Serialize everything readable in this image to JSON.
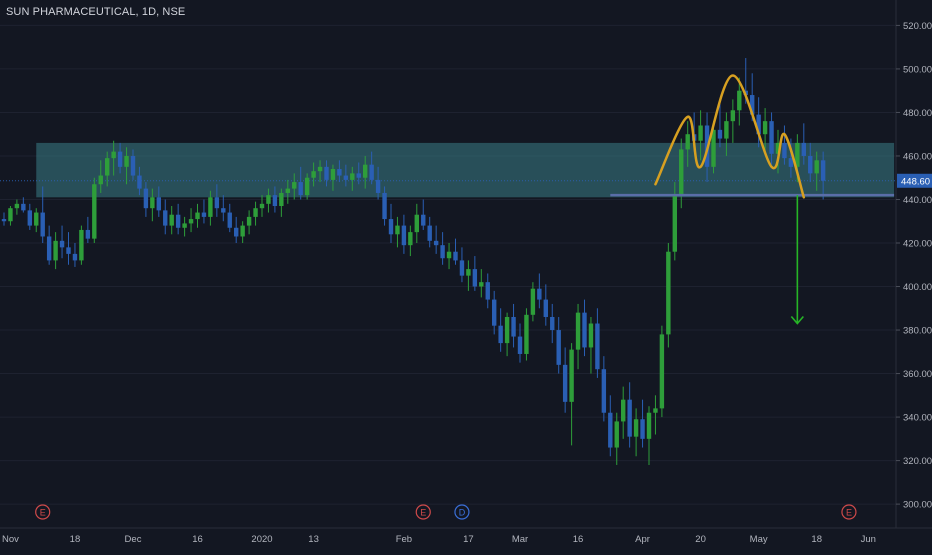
{
  "chart_title": "SUN PHARMACEUTICAL, 1D, NSE",
  "colors": {
    "background": "#131722",
    "up": "#2e9e3a",
    "down": "#2a5fb4",
    "zone": "#3a7d86",
    "support_line": "#5a6ea8",
    "pattern": "#d7a021",
    "target_arrow": "#26b526",
    "axis_text": "#b2b5be",
    "price_tag": "#2a5fb4",
    "event_earnings": "#d04a4a",
    "event_dividend": "#3a6fd8"
  },
  "chart_data": {
    "type": "candlestick",
    "title": "SUN PHARMACEUTICAL, 1D, NSE",
    "ylim": [
      295,
      528
    ],
    "y_ticks": [
      300,
      320,
      340,
      360,
      380,
      400,
      420,
      440,
      460,
      480,
      500,
      520
    ],
    "y_tick_labels": [
      "300.00",
      "320.00",
      "340.00",
      "360.00",
      "380.00",
      "400.00",
      "420.00",
      "440.00",
      "460.00",
      "480.00",
      "500.00",
      "520.00"
    ],
    "x_ticks": [
      {
        "label": "Nov",
        "i": 1
      },
      {
        "label": "18",
        "i": 11
      },
      {
        "label": "Dec",
        "i": 20
      },
      {
        "label": "16",
        "i": 30
      },
      {
        "label": "2020",
        "i": 40
      },
      {
        "label": "13",
        "i": 48
      },
      {
        "label": "Feb",
        "i": 62
      },
      {
        "label": "17",
        "i": 72
      },
      {
        "label": "Mar",
        "i": 80
      },
      {
        "label": "16",
        "i": 89
      },
      {
        "label": "Apr",
        "i": 99
      },
      {
        "label": "20",
        "i": 108
      },
      {
        "label": "May",
        "i": 117
      },
      {
        "label": "18",
        "i": 126
      },
      {
        "label": "Jun",
        "i": 134
      }
    ],
    "last_price": "448.60",
    "last_value": 448.6,
    "events": [
      {
        "type": "earnings",
        "label": "E",
        "i": 6
      },
      {
        "type": "earnings",
        "label": "E",
        "i": 65
      },
      {
        "type": "dividend",
        "label": "D",
        "i": 71
      },
      {
        "type": "earnings",
        "label": "E",
        "i": 131
      }
    ],
    "zone": {
      "from_i": 5,
      "to_i": 138,
      "low": 441,
      "high": 466
    },
    "neckline": {
      "from_i": 94,
      "to_i": 138,
      "value": 442
    },
    "pattern_points": [
      {
        "i": 101,
        "v": 447
      },
      {
        "i": 106,
        "v": 478
      },
      {
        "i": 108,
        "v": 455
      },
      {
        "i": 113,
        "v": 497
      },
      {
        "i": 119,
        "v": 455
      },
      {
        "i": 121,
        "v": 470
      },
      {
        "i": 124,
        "v": 441
      }
    ],
    "target_arrow": {
      "i": 123,
      "from": 442,
      "to": 383
    },
    "candles": [
      [
        431,
        434,
        428,
        430
      ],
      [
        430,
        437,
        428,
        436
      ],
      [
        436,
        440,
        433,
        438
      ],
      [
        438,
        441,
        434,
        435
      ],
      [
        435,
        438,
        426,
        428
      ],
      [
        428,
        436,
        425,
        434
      ],
      [
        434,
        446,
        420,
        423
      ],
      [
        423,
        428,
        410,
        412
      ],
      [
        412,
        425,
        408,
        421
      ],
      [
        421,
        428,
        413,
        418
      ],
      [
        418,
        425,
        410,
        415
      ],
      [
        415,
        420,
        409,
        412
      ],
      [
        412,
        428,
        410,
        426
      ],
      [
        426,
        432,
        420,
        422
      ],
      [
        422,
        450,
        420,
        447
      ],
      [
        447,
        458,
        443,
        451
      ],
      [
        451,
        462,
        446,
        459
      ],
      [
        459,
        467,
        451,
        462
      ],
      [
        462,
        466,
        452,
        455
      ],
      [
        455,
        464,
        447,
        460
      ],
      [
        460,
        463,
        449,
        451
      ],
      [
        451,
        455,
        442,
        445
      ],
      [
        445,
        448,
        432,
        436
      ],
      [
        436,
        445,
        430,
        441
      ],
      [
        441,
        446,
        432,
        435
      ],
      [
        435,
        440,
        424,
        428
      ],
      [
        428,
        437,
        424,
        433
      ],
      [
        433,
        438,
        424,
        427
      ],
      [
        427,
        432,
        423,
        429
      ],
      [
        429,
        436,
        425,
        431
      ],
      [
        431,
        438,
        427,
        434
      ],
      [
        434,
        440,
        429,
        432
      ],
      [
        432,
        444,
        428,
        441
      ],
      [
        441,
        447,
        432,
        436
      ],
      [
        436,
        442,
        430,
        434
      ],
      [
        434,
        438,
        425,
        427
      ],
      [
        427,
        432,
        420,
        423
      ],
      [
        423,
        430,
        420,
        428
      ],
      [
        428,
        435,
        424,
        432
      ],
      [
        432,
        439,
        428,
        436
      ],
      [
        436,
        442,
        432,
        438
      ],
      [
        438,
        445,
        434,
        442
      ],
      [
        442,
        446,
        434,
        437
      ],
      [
        437,
        445,
        432,
        443
      ],
      [
        443,
        449,
        438,
        445
      ],
      [
        445,
        452,
        440,
        448
      ],
      [
        448,
        455,
        440,
        442
      ],
      [
        442,
        452,
        440,
        450
      ],
      [
        450,
        457,
        446,
        453
      ],
      [
        453,
        458,
        448,
        455
      ],
      [
        455,
        458,
        446,
        449
      ],
      [
        449,
        456,
        444,
        454
      ],
      [
        454,
        458,
        448,
        451
      ],
      [
        451,
        456,
        446,
        449
      ],
      [
        449,
        455,
        444,
        452
      ],
      [
        452,
        457,
        447,
        450
      ],
      [
        450,
        460,
        445,
        456
      ],
      [
        456,
        462,
        447,
        449
      ],
      [
        449,
        455,
        440,
        443
      ],
      [
        443,
        446,
        428,
        431
      ],
      [
        431,
        438,
        420,
        424
      ],
      [
        424,
        432,
        418,
        428
      ],
      [
        428,
        433,
        415,
        419
      ],
      [
        419,
        428,
        414,
        425
      ],
      [
        425,
        438,
        420,
        433
      ],
      [
        433,
        440,
        426,
        428
      ],
      [
        428,
        432,
        418,
        421
      ],
      [
        421,
        428,
        415,
        419
      ],
      [
        419,
        425,
        410,
        413
      ],
      [
        413,
        420,
        408,
        416
      ],
      [
        416,
        422,
        410,
        412
      ],
      [
        412,
        418,
        402,
        405
      ],
      [
        405,
        412,
        398,
        408
      ],
      [
        408,
        414,
        398,
        400
      ],
      [
        400,
        408,
        395,
        402
      ],
      [
        402,
        406,
        390,
        394
      ],
      [
        394,
        398,
        378,
        382
      ],
      [
        382,
        390,
        370,
        374
      ],
      [
        374,
        388,
        368,
        386
      ],
      [
        386,
        392,
        372,
        377
      ],
      [
        377,
        383,
        365,
        369
      ],
      [
        369,
        390,
        366,
        387
      ],
      [
        387,
        402,
        384,
        399
      ],
      [
        399,
        406,
        390,
        394
      ],
      [
        394,
        401,
        382,
        386
      ],
      [
        386,
        392,
        374,
        380
      ],
      [
        380,
        386,
        360,
        364
      ],
      [
        364,
        372,
        342,
        347
      ],
      [
        347,
        374,
        327,
        371
      ],
      [
        371,
        392,
        362,
        388
      ],
      [
        388,
        394,
        368,
        372
      ],
      [
        372,
        386,
        360,
        383
      ],
      [
        383,
        390,
        358,
        362
      ],
      [
        362,
        368,
        338,
        342
      ],
      [
        342,
        350,
        322,
        326
      ],
      [
        326,
        342,
        318,
        338
      ],
      [
        338,
        354,
        330,
        348
      ],
      [
        348,
        356,
        326,
        331
      ],
      [
        331,
        344,
        322,
        339
      ],
      [
        339,
        348,
        326,
        330
      ],
      [
        330,
        345,
        318,
        342
      ],
      [
        342,
        350,
        332,
        344
      ],
      [
        344,
        382,
        340,
        378
      ],
      [
        378,
        420,
        372,
        416
      ],
      [
        416,
        448,
        412,
        442
      ],
      [
        442,
        468,
        436,
        463
      ],
      [
        463,
        476,
        455,
        470
      ],
      [
        470,
        480,
        462,
        467
      ],
      [
        467,
        481,
        458,
        474
      ],
      [
        474,
        480,
        448,
        455
      ],
      [
        455,
        476,
        452,
        472
      ],
      [
        472,
        484,
        464,
        468
      ],
      [
        468,
        480,
        460,
        476
      ],
      [
        476,
        486,
        466,
        481
      ],
      [
        481,
        496,
        474,
        490
      ],
      [
        490,
        505,
        484,
        488
      ],
      [
        488,
        498,
        476,
        479
      ],
      [
        479,
        487,
        464,
        470
      ],
      [
        470,
        482,
        462,
        476
      ],
      [
        476,
        480,
        456,
        461
      ],
      [
        461,
        472,
        452,
        466
      ],
      [
        466,
        474,
        456,
        459
      ],
      [
        459,
        468,
        450,
        455
      ],
      [
        455,
        470,
        448,
        466
      ],
      [
        466,
        475,
        456,
        460
      ],
      [
        460,
        466,
        448,
        452
      ],
      [
        452,
        462,
        444,
        458
      ],
      [
        458,
        462,
        440,
        448.6
      ]
    ]
  }
}
